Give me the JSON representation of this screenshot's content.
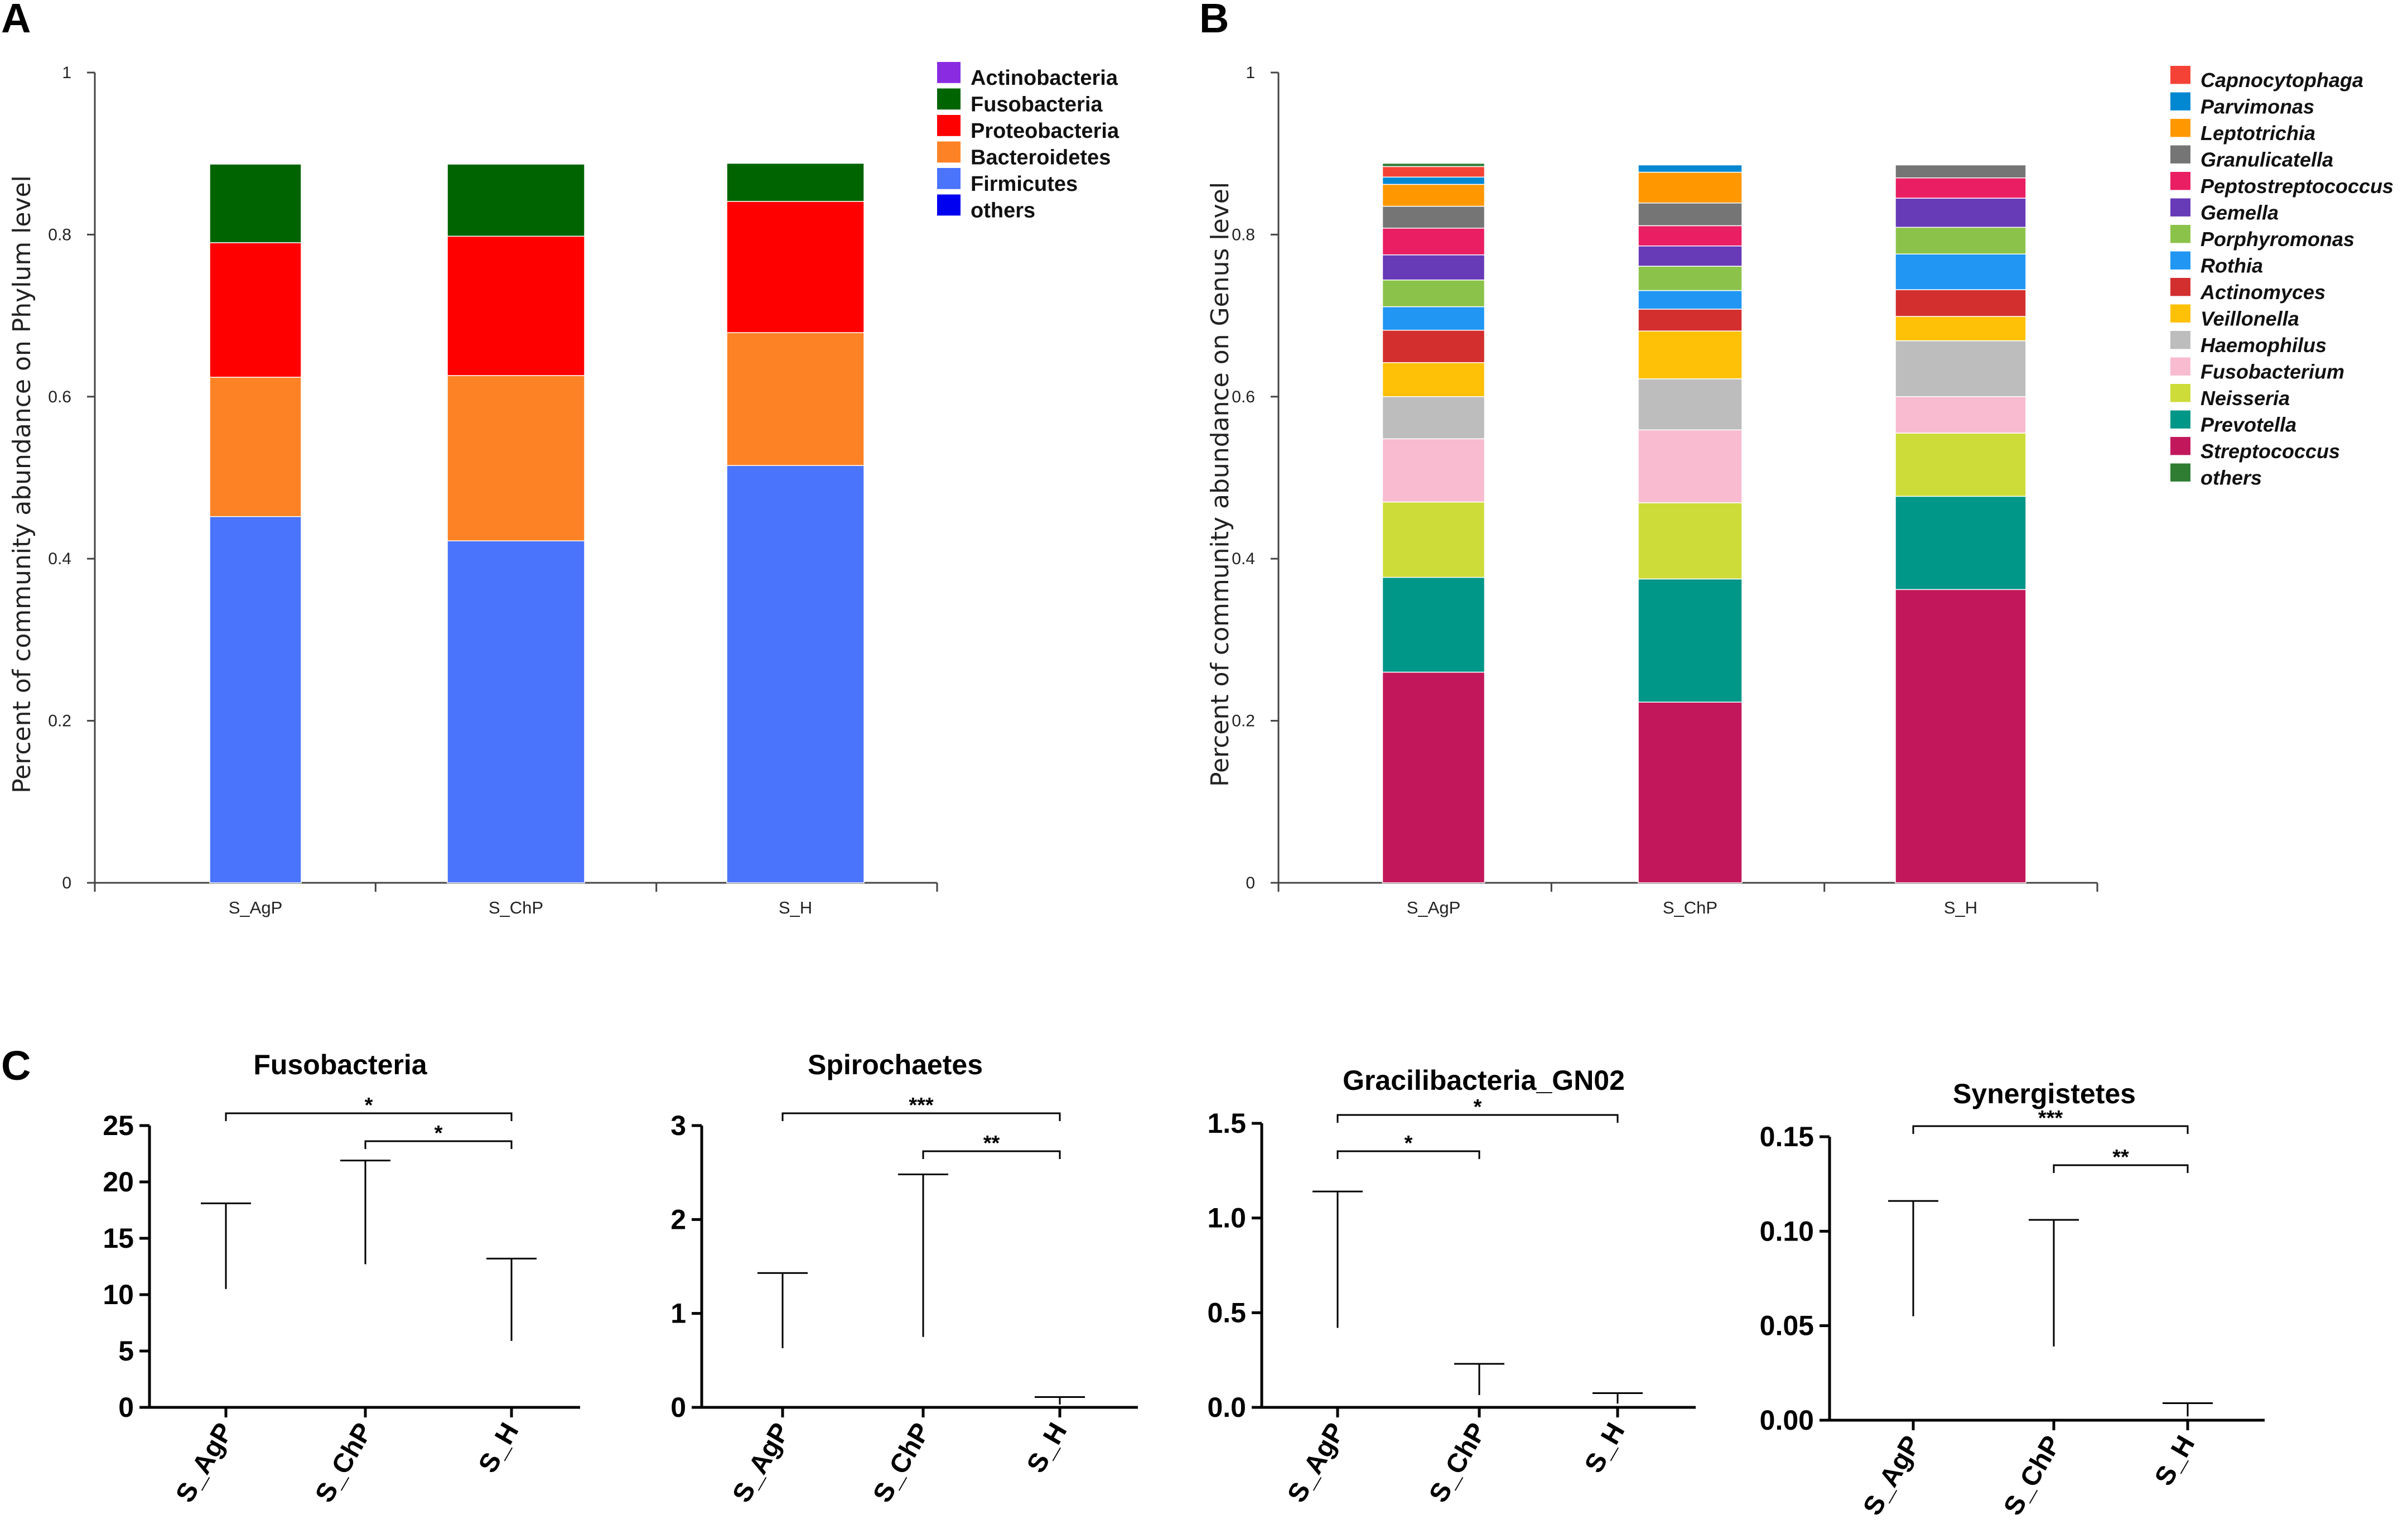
{
  "panel_labels": {
    "a": "A",
    "b": "B",
    "c": "C"
  },
  "chart_data": [
    {
      "id": "A",
      "type": "bar",
      "stacked": true,
      "title": "",
      "xlabel": "",
      "ylabel": "Percent of community abundance on Phylum level",
      "ylim": [
        0,
        1
      ],
      "yticks": [
        "0",
        "0.2",
        "0.4",
        "0.6",
        "0.8",
        "1"
      ],
      "categories": [
        "S_AgP",
        "S_ChP",
        "S_H"
      ],
      "legend_position": "top-right",
      "legend_order": [
        "Actinobacteria",
        "Fusobacteria",
        "Proteobacteria",
        "Bacteroidetes",
        "Firmicutes",
        "others"
      ],
      "series": [
        {
          "name": "Firmicutes",
          "color": "#4a74fc",
          "values": [
            0.452,
            0.422,
            0.515
          ]
        },
        {
          "name": "Bacteroidetes",
          "color": "#fd8225",
          "values": [
            0.172,
            0.204,
            0.164
          ]
        },
        {
          "name": "Proteobacteria",
          "color": "#fe0000",
          "values": [
            0.166,
            0.172,
            0.162
          ]
        },
        {
          "name": "Fusobacteria",
          "color": "#006500",
          "values": [
            0.097,
            0.089,
            0.047
          ]
        },
        {
          "name": "Actinobacteria",
          "color": "#8a2be2",
          "values": [
            0,
            0,
            0
          ]
        },
        {
          "name": "others",
          "color": "#0000f0",
          "values": [
            0,
            0,
            0
          ]
        }
      ]
    },
    {
      "id": "B",
      "type": "bar",
      "stacked": true,
      "title": "",
      "xlabel": "",
      "ylabel": "Percent of community abundance on Genus level",
      "ylim": [
        0,
        1
      ],
      "yticks": [
        "0",
        "0.2",
        "0.4",
        "0.6",
        "0.8",
        "1"
      ],
      "categories": [
        "S_AgP",
        "S_ChP",
        "S_H"
      ],
      "legend_position": "top-right",
      "legend_order": [
        "Capnocytophaga",
        "Parvimonas",
        "Leptotrichia",
        "Granulicatella",
        "Peptostreptococcus",
        "Gemella",
        "Porphyromonas",
        "Rothia",
        "Actinomyces",
        "Veillonella",
        "Haemophilus",
        "Fusobacterium",
        "Neisseria",
        "Prevotella",
        "Streptococcus",
        "others"
      ],
      "series": [
        {
          "name": "Streptococcus",
          "color": "#c2185b",
          "values": [
            0.26,
            0.223,
            0.362
          ]
        },
        {
          "name": "Prevotella",
          "color": "#009688",
          "values": [
            0.117,
            0.152,
            0.115
          ]
        },
        {
          "name": "Neisseria",
          "color": "#cddc39",
          "values": [
            0.093,
            0.094,
            0.078
          ]
        },
        {
          "name": "Fusobacterium",
          "color": "#f8bbd0",
          "values": [
            0.078,
            0.09,
            0.045
          ]
        },
        {
          "name": "Haemophilus",
          "color": "#bdbdbd",
          "values": [
            0.052,
            0.063,
            0.069
          ]
        },
        {
          "name": "Veillonella",
          "color": "#ffc107",
          "values": [
            0.042,
            0.059,
            0.03
          ]
        },
        {
          "name": "Actinomyces",
          "color": "#d32f2f",
          "values": [
            0.04,
            0.027,
            0.033
          ]
        },
        {
          "name": "Rothia",
          "color": "#2196f3",
          "values": [
            0.029,
            0.023,
            0.044
          ]
        },
        {
          "name": "Porphyromonas",
          "color": "#8bc34a",
          "values": [
            0.033,
            0.03,
            0.033
          ]
        },
        {
          "name": "Gemella",
          "color": "#673ab7",
          "values": [
            0.031,
            0.025,
            0.036
          ]
        },
        {
          "name": "Peptostreptococcus",
          "color": "#e91e63",
          "values": [
            0.033,
            0.025,
            0.025
          ]
        },
        {
          "name": "Granulicatella",
          "color": "#757575",
          "values": [
            0.027,
            0.028,
            0.016
          ]
        },
        {
          "name": "Leptotrichia",
          "color": "#ff9800",
          "values": [
            0.027,
            0.038,
            0
          ]
        },
        {
          "name": "Parvimonas",
          "color": "#0288d1",
          "values": [
            0.009,
            0.009,
            0
          ]
        },
        {
          "name": "Capnocytophaga",
          "color": "#f44336",
          "values": [
            0.013,
            0,
            0
          ]
        },
        {
          "name": "others",
          "color": "#2e7d32",
          "values": [
            0.004,
            0,
            0
          ]
        }
      ]
    },
    {
      "id": "C1",
      "type": "bar",
      "title": "Fusobacteria",
      "xlabel": "",
      "ylabel": "",
      "ylim": [
        0,
        25
      ],
      "yticks": [
        "0",
        "5",
        "10",
        "15",
        "20",
        "25"
      ],
      "categories": [
        "S_AgP",
        "S_ChP",
        "S_H"
      ],
      "colors": [
        "#4e8061",
        "#483d8b",
        "#e8131a"
      ],
      "values": [
        10.5,
        12.7,
        5.9
      ],
      "error_upper": [
        18.1,
        21.9,
        13.2
      ],
      "significance": [
        {
          "from": 0,
          "to": 2,
          "label": "*"
        },
        {
          "from": 1,
          "to": 2,
          "label": "*"
        }
      ]
    },
    {
      "id": "C2",
      "type": "bar",
      "title": "Spirochaetes",
      "xlabel": "",
      "ylabel": "",
      "ylim": [
        0,
        3
      ],
      "yticks": [
        "0",
        "1",
        "2",
        "3"
      ],
      "categories": [
        "S_AgP",
        "S_ChP",
        "S_H"
      ],
      "colors": [
        "#4e8061",
        "#483d8b",
        "#e8131a"
      ],
      "values": [
        0.63,
        0.75,
        0.03
      ],
      "error_upper": [
        1.43,
        2.48,
        0.11
      ],
      "significance": [
        {
          "from": 0,
          "to": 2,
          "label": "***"
        },
        {
          "from": 1,
          "to": 2,
          "label": "**"
        }
      ]
    },
    {
      "id": "C3",
      "type": "bar",
      "title": "Gracilibacteria_GN02",
      "xlabel": "",
      "ylabel": "",
      "ylim": [
        0,
        1.5
      ],
      "yticks": [
        "0.0",
        "0.5",
        "1.0",
        "1.5"
      ],
      "categories": [
        "S_AgP",
        "S_ChP",
        "S_H"
      ],
      "colors": [
        "#4e8061",
        "#483d8b",
        "#e8131a"
      ],
      "values": [
        0.42,
        0.065,
        0.02
      ],
      "error_upper": [
        1.14,
        0.23,
        0.075
      ],
      "significance": [
        {
          "from": 0,
          "to": 2,
          "label": "*"
        },
        {
          "from": 0,
          "to": 1,
          "label": "*"
        }
      ]
    },
    {
      "id": "C4",
      "type": "bar",
      "title": "Synergistetes",
      "xlabel": "",
      "ylabel": "",
      "ylim": [
        0,
        0.15
      ],
      "yticks": [
        "0.00",
        "0.05",
        "0.10",
        "0.15"
      ],
      "categories": [
        "S_AgP",
        "S_ChP",
        "S_H"
      ],
      "colors": [
        "#4e8061",
        "#483d8b",
        "#e8131a"
      ],
      "values": [
        0.055,
        0.039,
        0.002
      ],
      "error_upper": [
        0.116,
        0.106,
        0.009
      ],
      "significance": [
        {
          "from": 0,
          "to": 2,
          "label": "***"
        },
        {
          "from": 1,
          "to": 2,
          "label": "**"
        }
      ]
    }
  ]
}
